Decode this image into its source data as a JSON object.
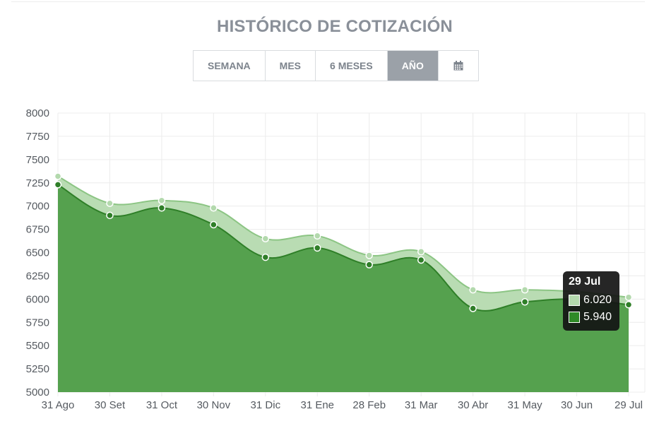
{
  "title": "HISTÓRICO DE COTIZACIÓN",
  "range_buttons": [
    {
      "label": "SEMANA",
      "active": false
    },
    {
      "label": "MES",
      "active": false
    },
    {
      "label": "6 MESES",
      "active": false
    },
    {
      "label": "AÑO",
      "active": true
    }
  ],
  "calendar_icon": "calendar-icon",
  "colors": {
    "series_high": "#b3d9ad",
    "series_low": "#55a14e",
    "line_high": "#8cc584",
    "line_low": "#2f7f28",
    "band_fill": "#b9dcb3"
  },
  "chart_data": {
    "type": "area",
    "categories": [
      "31 Ago",
      "30 Set",
      "31 Oct",
      "30 Nov",
      "31 Dic",
      "31 Ene",
      "28 Feb",
      "31 Mar",
      "30 Abr",
      "31 May",
      "30 Jun",
      "29 Jul"
    ],
    "series": [
      {
        "values": [
          7320,
          7030,
          7060,
          6980,
          6650,
          6680,
          6470,
          6510,
          6100,
          6100,
          6080,
          6020
        ]
      },
      {
        "values": [
          7230,
          6900,
          6980,
          6800,
          6450,
          6550,
          6370,
          6420,
          5900,
          5970,
          6000,
          5940
        ]
      }
    ],
    "ylim": [
      5000,
      8000
    ],
    "yticks": [
      5000,
      5250,
      5500,
      5750,
      6000,
      6250,
      6500,
      6750,
      7000,
      7250,
      7500,
      7750,
      8000
    ],
    "grid": true,
    "legend": "none"
  },
  "tooltip": {
    "title": "29 Jul",
    "rows": [
      {
        "value": "6.020",
        "color": "#b3d9ad"
      },
      {
        "value": "5.940",
        "color": "#2f8a27"
      }
    ]
  }
}
